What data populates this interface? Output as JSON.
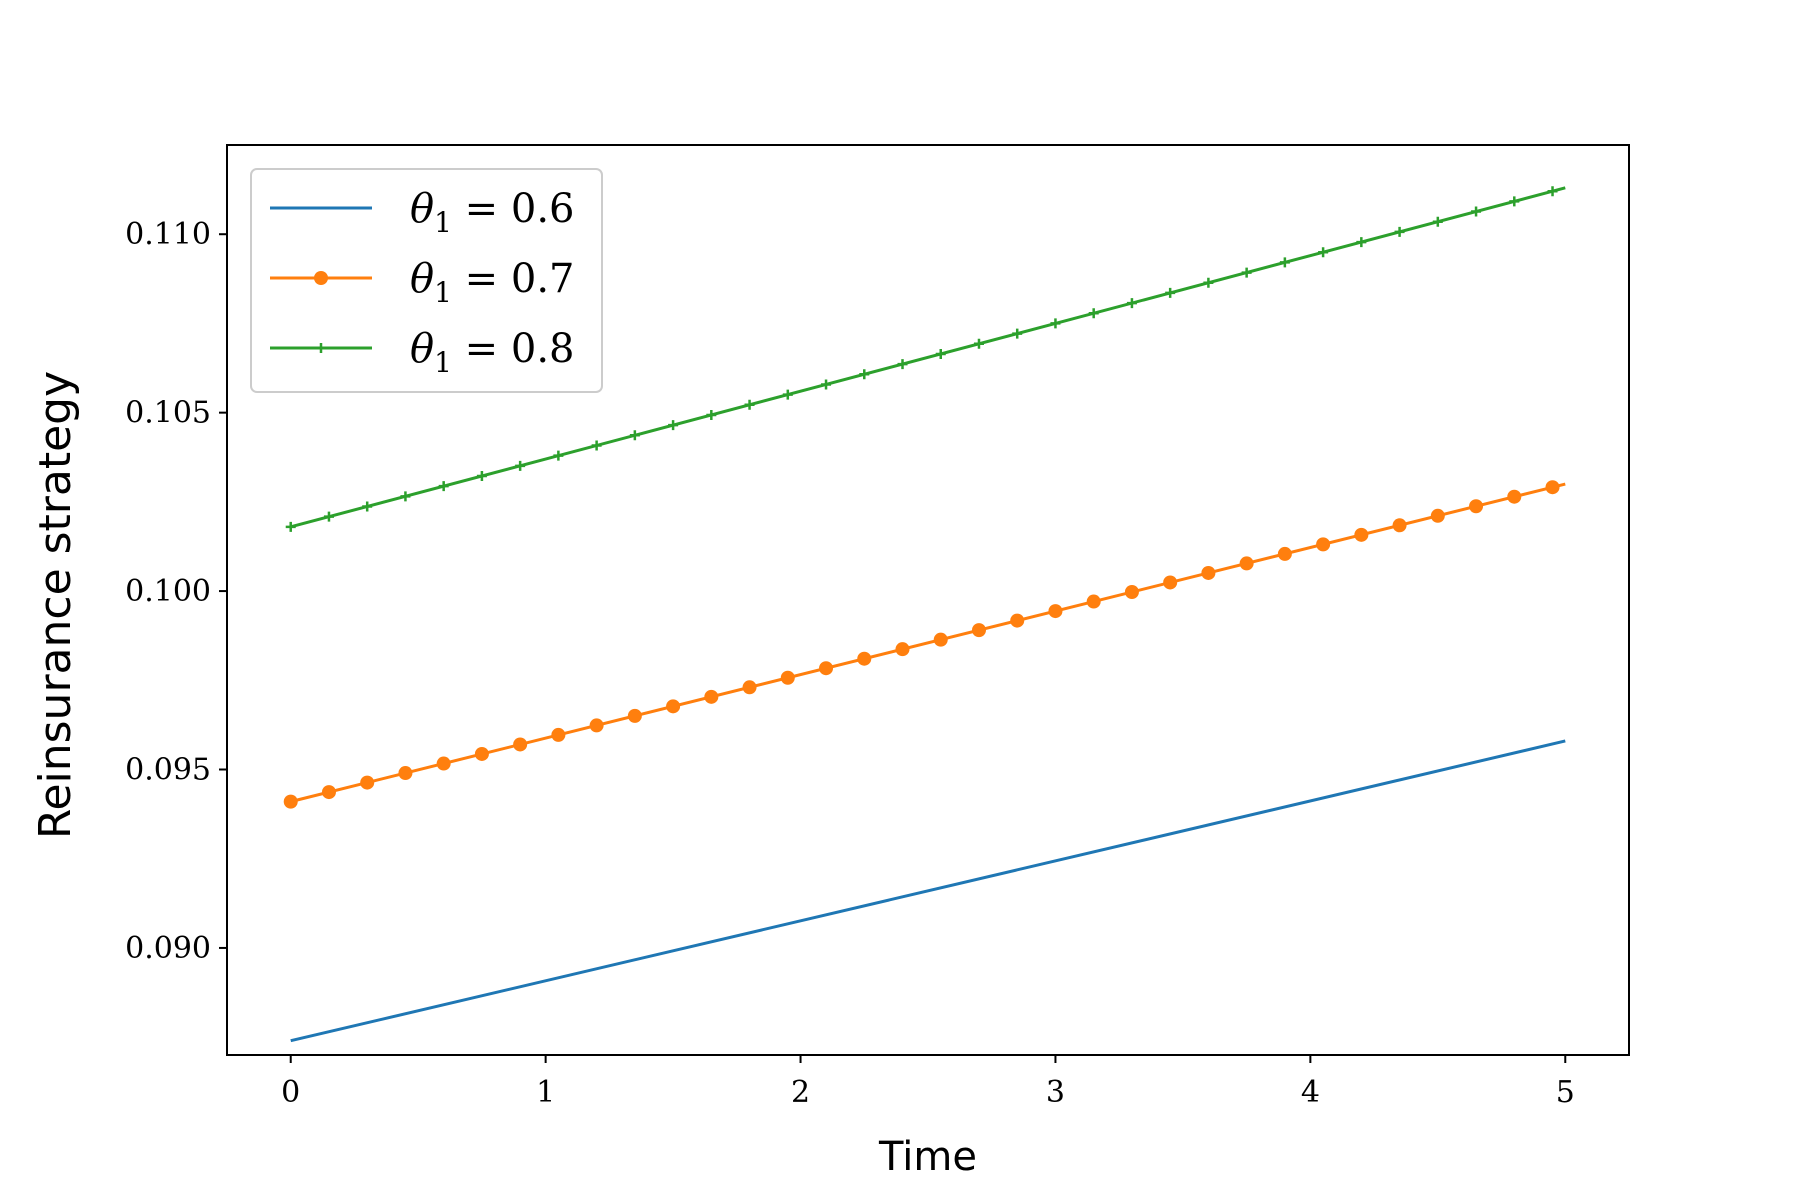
{
  "chart_data": {
    "type": "line",
    "title": "",
    "xlabel": "Time",
    "ylabel": "Reinsurance strategy",
    "xlim": [
      -0.25,
      5.25
    ],
    "ylim": [
      0.087,
      0.1125
    ],
    "xticks": [
      0,
      1,
      2,
      3,
      4,
      5
    ],
    "xtick_labels": [
      "0",
      "1",
      "2",
      "3",
      "4",
      "5"
    ],
    "yticks": [
      0.09,
      0.095,
      0.1,
      0.105,
      0.11
    ],
    "ytick_labels": [
      "0.090",
      "0.095",
      "0.100",
      "0.105",
      "0.110"
    ],
    "grid": false,
    "legend_position": "top-left",
    "series": [
      {
        "name": "θ1 = 0.6",
        "legend": {
          "symbol": "θ",
          "sub": "1",
          "rest": " = 0.6"
        },
        "color": "#1f77b4",
        "marker": "none",
        "x_start": 0,
        "x_end": 5,
        "y_start": 0.0874,
        "y_end": 0.0958
      },
      {
        "name": "θ1 = 0.7",
        "legend": {
          "symbol": "θ",
          "sub": "1",
          "rest": " = 0.7"
        },
        "color": "#ff7f0e",
        "marker": "circle",
        "x_start": 0,
        "x_end": 5,
        "y_start": 0.0941,
        "y_end": 0.103
      },
      {
        "name": "θ1 = 0.8",
        "legend": {
          "symbol": "θ",
          "sub": "1",
          "rest": " = 0.8"
        },
        "color": "#2ca02c",
        "marker": "plus",
        "x_start": 0,
        "x_end": 5,
        "y_start": 0.1018,
        "y_end": 0.1113
      }
    ],
    "marker_x_step": 0.15
  }
}
